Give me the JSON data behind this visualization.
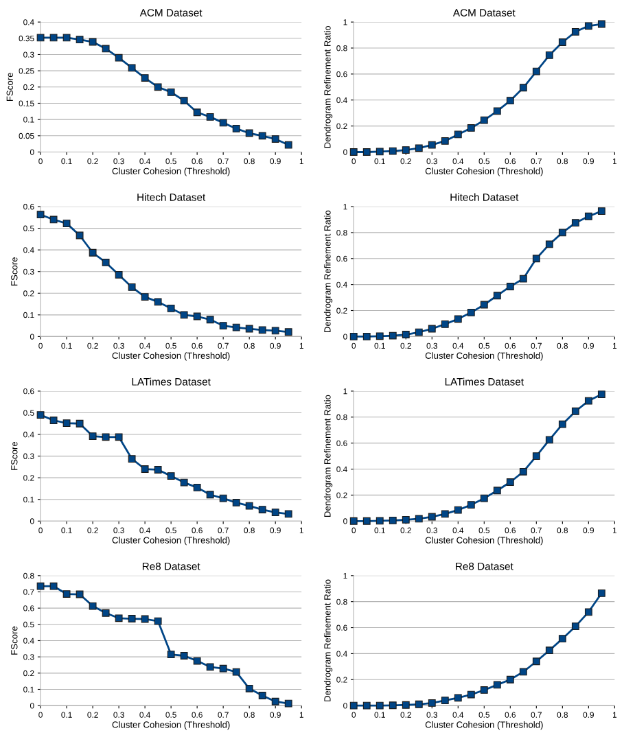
{
  "chart_data": [
    {
      "type": "line",
      "title": "ACM Dataset",
      "xlabel": "Cluster Cohesion (Threshold)",
      "ylabel": "FScore",
      "x": [
        0,
        0.05,
        0.1,
        0.15,
        0.2,
        0.25,
        0.3,
        0.35,
        0.4,
        0.45,
        0.5,
        0.55,
        0.6,
        0.65,
        0.7,
        0.75,
        0.8,
        0.85,
        0.9,
        0.95
      ],
      "xlim": [
        0,
        1
      ],
      "xticks": [
        0,
        0.1,
        0.2,
        0.3,
        0.4,
        0.5,
        0.6,
        0.7,
        0.8,
        0.9,
        1
      ],
      "ylim": [
        0,
        0.4
      ],
      "yticks": [
        0,
        0.05,
        0.1,
        0.15,
        0.2,
        0.25,
        0.3,
        0.35,
        0.4
      ],
      "grid": "y",
      "marker": "square",
      "line_style": "solid",
      "series": [
        {
          "color": "#004586",
          "values": [
            0.352,
            0.352,
            0.352,
            0.346,
            0.339,
            0.318,
            0.29,
            0.259,
            0.228,
            0.2,
            0.184,
            0.158,
            0.122,
            0.108,
            0.09,
            0.072,
            0.058,
            0.05,
            0.04,
            0.022
          ]
        }
      ]
    },
    {
      "type": "line",
      "title": "ACM Dataset",
      "xlabel": "Cluster Cohesion (Threshold)",
      "ylabel": "Dendrogram Refinement Ratio",
      "x": [
        0,
        0.05,
        0.1,
        0.15,
        0.2,
        0.25,
        0.3,
        0.35,
        0.4,
        0.45,
        0.5,
        0.55,
        0.6,
        0.65,
        0.7,
        0.75,
        0.8,
        0.85,
        0.9,
        0.95
      ],
      "xlim": [
        0,
        1
      ],
      "xticks": [
        0,
        0.1,
        0.2,
        0.3,
        0.4,
        0.5,
        0.6,
        0.7,
        0.8,
        0.9,
        1
      ],
      "ylim": [
        0,
        1
      ],
      "yticks": [
        0,
        0.2,
        0.4,
        0.6,
        0.8,
        1
      ],
      "grid": "y",
      "marker": "square",
      "line_style": "solid",
      "series": [
        {
          "color": "#004586",
          "values": [
            0,
            0,
            0.003,
            0.007,
            0.015,
            0.03,
            0.055,
            0.085,
            0.135,
            0.185,
            0.245,
            0.315,
            0.395,
            0.495,
            0.62,
            0.745,
            0.845,
            0.925,
            0.97,
            0.985
          ]
        }
      ]
    },
    {
      "type": "line",
      "title": "Hitech Dataset",
      "xlabel": "Cluster Cohesion (Threshold)",
      "ylabel": "FScore",
      "x": [
        0,
        0.05,
        0.1,
        0.15,
        0.2,
        0.25,
        0.3,
        0.35,
        0.4,
        0.45,
        0.5,
        0.55,
        0.6,
        0.65,
        0.7,
        0.75,
        0.8,
        0.85,
        0.9,
        0.95
      ],
      "xlim": [
        0,
        1
      ],
      "xticks": [
        0,
        0.1,
        0.2,
        0.3,
        0.4,
        0.5,
        0.6,
        0.7,
        0.8,
        0.9,
        1
      ],
      "ylim": [
        0,
        0.6
      ],
      "yticks": [
        0,
        0.1,
        0.2,
        0.3,
        0.4,
        0.5,
        0.6
      ],
      "grid": "y",
      "marker": "square",
      "line_style": "solid",
      "series": [
        {
          "color": "#004586",
          "values": [
            0.563,
            0.54,
            0.522,
            0.467,
            0.387,
            0.342,
            0.285,
            0.228,
            0.183,
            0.16,
            0.13,
            0.1,
            0.093,
            0.078,
            0.05,
            0.042,
            0.036,
            0.03,
            0.027,
            0.021
          ]
        }
      ]
    },
    {
      "type": "line",
      "title": "Hitech Dataset",
      "xlabel": "Cluster Cohesion (Threshold)",
      "ylabel": "Dendrogram Refinement Ratio",
      "x": [
        0,
        0.05,
        0.1,
        0.15,
        0.2,
        0.25,
        0.3,
        0.35,
        0.4,
        0.45,
        0.5,
        0.55,
        0.6,
        0.65,
        0.7,
        0.75,
        0.8,
        0.85,
        0.9,
        0.95
      ],
      "xlim": [
        0,
        1
      ],
      "xticks": [
        0,
        0.1,
        0.2,
        0.3,
        0.4,
        0.5,
        0.6,
        0.7,
        0.8,
        0.9,
        1
      ],
      "ylim": [
        0,
        1
      ],
      "yticks": [
        0,
        0.2,
        0.4,
        0.6,
        0.8,
        1
      ],
      "grid": "y",
      "marker": "square",
      "line_style": "solid",
      "series": [
        {
          "color": "#004586",
          "values": [
            0,
            0,
            0.003,
            0.007,
            0.015,
            0.033,
            0.06,
            0.095,
            0.135,
            0.185,
            0.245,
            0.315,
            0.385,
            0.445,
            0.6,
            0.71,
            0.8,
            0.875,
            0.925,
            0.965
          ]
        }
      ]
    },
    {
      "type": "line",
      "title": "LATimes Dataset",
      "xlabel": "Cluster Cohesion (Threshold)",
      "ylabel": "FScore",
      "x": [
        0,
        0.05,
        0.1,
        0.15,
        0.2,
        0.25,
        0.3,
        0.35,
        0.4,
        0.45,
        0.5,
        0.55,
        0.6,
        0.65,
        0.7,
        0.75,
        0.8,
        0.85,
        0.9,
        0.95
      ],
      "xlim": [
        0,
        1
      ],
      "xticks": [
        0,
        0.1,
        0.2,
        0.3,
        0.4,
        0.5,
        0.6,
        0.7,
        0.8,
        0.9,
        1
      ],
      "ylim": [
        0,
        0.6
      ],
      "yticks": [
        0,
        0.1,
        0.2,
        0.3,
        0.4,
        0.5,
        0.6
      ],
      "grid": "y",
      "marker": "square",
      "line_style": "solid",
      "series": [
        {
          "color": "#004586",
          "values": [
            0.49,
            0.465,
            0.452,
            0.45,
            0.392,
            0.388,
            0.388,
            0.287,
            0.24,
            0.237,
            0.208,
            0.178,
            0.155,
            0.122,
            0.105,
            0.085,
            0.07,
            0.053,
            0.04,
            0.033
          ]
        }
      ]
    },
    {
      "type": "line",
      "title": "LATimes Dataset",
      "xlabel": "Cluster Cohesion (Threshold)",
      "ylabel": "Dendrogram Refinement Ratio",
      "x": [
        0,
        0.05,
        0.1,
        0.15,
        0.2,
        0.25,
        0.3,
        0.35,
        0.4,
        0.45,
        0.5,
        0.55,
        0.6,
        0.65,
        0.7,
        0.75,
        0.8,
        0.85,
        0.9,
        0.95
      ],
      "xlim": [
        0,
        1
      ],
      "xticks": [
        0,
        0.1,
        0.2,
        0.3,
        0.4,
        0.5,
        0.6,
        0.7,
        0.8,
        0.9,
        1
      ],
      "ylim": [
        0,
        1
      ],
      "yticks": [
        0,
        0.2,
        0.4,
        0.6,
        0.8,
        1
      ],
      "grid": "y",
      "marker": "square",
      "line_style": "solid",
      "series": [
        {
          "color": "#004586",
          "values": [
            0,
            0,
            0.002,
            0.005,
            0.01,
            0.018,
            0.033,
            0.055,
            0.085,
            0.125,
            0.175,
            0.235,
            0.3,
            0.38,
            0.5,
            0.625,
            0.745,
            0.845,
            0.925,
            0.975
          ]
        }
      ]
    },
    {
      "type": "line",
      "title": "Re8 Dataset",
      "xlabel": "Cluster Cohesion (Threshold)",
      "ylabel": "FScore",
      "x": [
        0,
        0.05,
        0.1,
        0.15,
        0.2,
        0.25,
        0.3,
        0.35,
        0.4,
        0.45,
        0.5,
        0.55,
        0.6,
        0.65,
        0.7,
        0.75,
        0.8,
        0.85,
        0.9,
        0.95
      ],
      "xlim": [
        0,
        1
      ],
      "xticks": [
        0,
        0.1,
        0.2,
        0.3,
        0.4,
        0.5,
        0.6,
        0.7,
        0.8,
        0.9,
        1
      ],
      "ylim": [
        0,
        0.8
      ],
      "yticks": [
        0,
        0.1,
        0.2,
        0.3,
        0.4,
        0.5,
        0.6,
        0.7,
        0.8
      ],
      "grid": "y",
      "marker": "square",
      "line_style": "solid",
      "series": [
        {
          "color": "#004586",
          "values": [
            0.735,
            0.735,
            0.687,
            0.685,
            0.613,
            0.57,
            0.538,
            0.535,
            0.533,
            0.52,
            0.315,
            0.307,
            0.275,
            0.238,
            0.228,
            0.207,
            0.105,
            0.062,
            0.025,
            0.013
          ]
        }
      ]
    },
    {
      "type": "line",
      "title": "Re8 Dataset",
      "xlabel": "Cluster Cohesion (Threshold)",
      "ylabel": "Dendrogram Refinement Ratio",
      "x": [
        0,
        0.05,
        0.1,
        0.15,
        0.2,
        0.25,
        0.3,
        0.35,
        0.4,
        0.45,
        0.5,
        0.55,
        0.6,
        0.65,
        0.7,
        0.75,
        0.8,
        0.85,
        0.9,
        0.95
      ],
      "xlim": [
        0,
        1
      ],
      "xticks": [
        0,
        0.1,
        0.2,
        0.3,
        0.4,
        0.5,
        0.6,
        0.7,
        0.8,
        0.9,
        1
      ],
      "ylim": [
        0,
        1
      ],
      "yticks": [
        0,
        0.2,
        0.4,
        0.6,
        0.8,
        1
      ],
      "grid": "y",
      "marker": "square",
      "line_style": "solid",
      "series": [
        {
          "color": "#004586",
          "values": [
            0,
            0,
            0,
            0.002,
            0.005,
            0.01,
            0.02,
            0.04,
            0.06,
            0.085,
            0.12,
            0.16,
            0.2,
            0.26,
            0.34,
            0.425,
            0.515,
            0.61,
            0.72,
            0.865
          ]
        }
      ]
    }
  ]
}
